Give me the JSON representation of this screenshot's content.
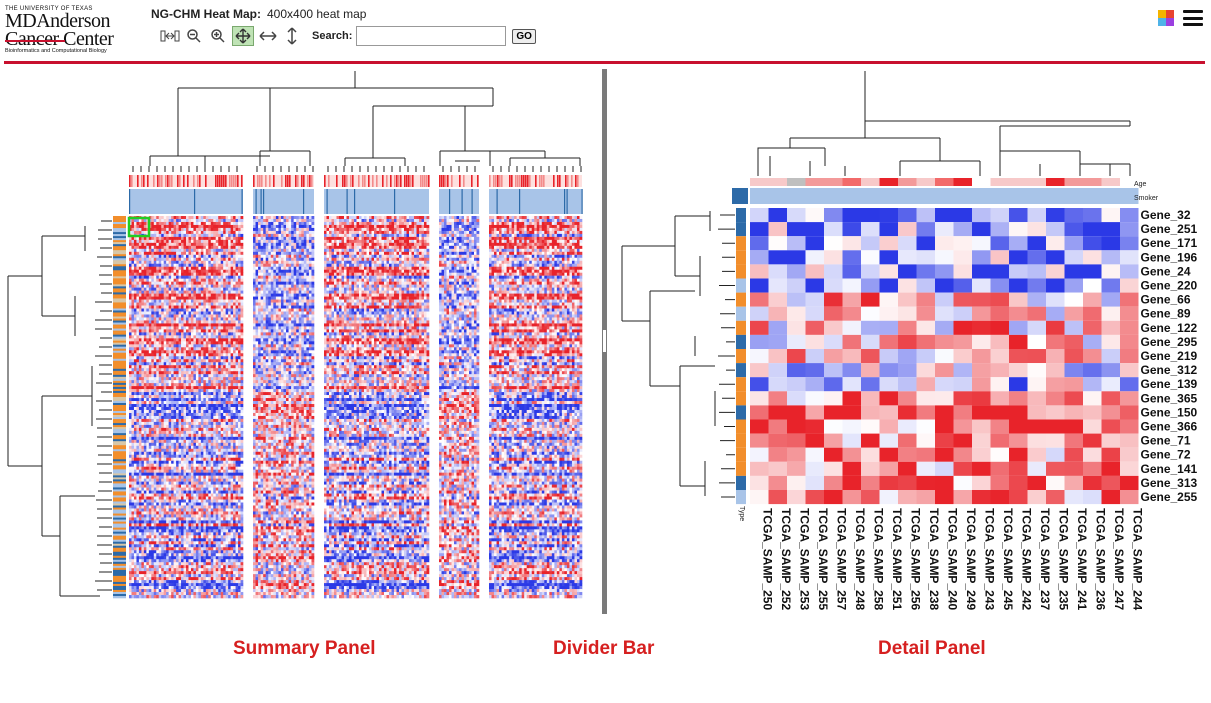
{
  "logo": {
    "line1": "THE UNIVERSITY OF TEXAS",
    "line2": "MDAnderson",
    "line3": "Cancer Center",
    "line4": "Bioinformatics and Computational Biology"
  },
  "header": {
    "app_name": "NG-CHM Heat Map:",
    "map_name": "400x400 heat map",
    "search_label": "Search:",
    "search_value": "",
    "go_label": "GO"
  },
  "toolbar_icons": [
    "flip-icon",
    "zoom-out-icon",
    "zoom-in-icon",
    "pan-both-icon",
    "pan-horizontal-icon",
    "pan-vertical-icon"
  ],
  "colors": {
    "accent_red": "#c8102e",
    "heat_high": "#e8232a",
    "heat_low": "#2b39e6",
    "heat_mid": "#ffffff",
    "annotation_light_blue": "#a8c4e8",
    "annotation_dark_blue": "#2c6aa8",
    "annotation_orange": "#f28e2b",
    "selection_box": "#22cc22",
    "caption_red": "#d62020"
  },
  "detail": {
    "col_annotation_labels": [
      "Age",
      "Smoker"
    ],
    "row_annotation_label": "Type",
    "row_labels": [
      "Gene_32",
      "Gene_251",
      "Gene_171",
      "Gene_196",
      "Gene_24",
      "Gene_220",
      "Gene_66",
      "Gene_89",
      "Gene_122",
      "Gene_295",
      "Gene_219",
      "Gene_312",
      "Gene_139",
      "Gene_365",
      "Gene_150",
      "Gene_366",
      "Gene_71",
      "Gene_72",
      "Gene_141",
      "Gene_313",
      "Gene_255"
    ],
    "col_labels": [
      "TCGA_SAMP_250",
      "TCGA_SAMP_252",
      "TCGA_SAMP_253",
      "TCGA_SAMP_255",
      "TCGA_SAMP_257",
      "TCGA_SAMP_248",
      "TCGA_SAMP_258",
      "TCGA_SAMP_251",
      "TCGA_SAMP_256",
      "TCGA_SAMP_238",
      "TCGA_SAMP_240",
      "TCGA_SAMP_249",
      "TCGA_SAMP_243",
      "TCGA_SAMP_245",
      "TCGA_SAMP_242",
      "TCGA_SAMP_237",
      "TCGA_SAMP_235",
      "TCGA_SAMP_241",
      "TCGA_SAMP_236",
      "TCGA_SAMP_247",
      "TCGA_SAMP_244"
    ]
  },
  "captions": {
    "summary": "Summary Panel",
    "divider": "Divider Bar",
    "detail": "Detail Panel"
  }
}
